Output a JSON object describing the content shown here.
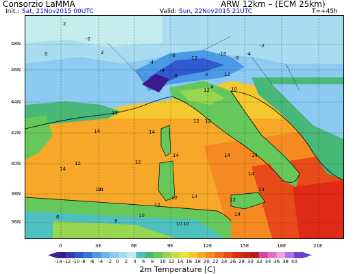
{
  "header": {
    "org": "Consorzio LaMMA",
    "model": "ARW 12km – (ECM 25km)",
    "init_label": "Init.:",
    "init_value": "Sat, 21Nov2015 00UTC",
    "valid_label": "Valid:",
    "valid_value": "Sun, 22Nov2015 21UTC",
    "lead": "T=+45h"
  },
  "map": {
    "lat_labels": [
      "48N",
      "46N",
      "44N",
      "42N",
      "40N",
      "38N",
      "36N"
    ],
    "lon_labels": [
      "0",
      "3E",
      "6E",
      "9E",
      "12E",
      "15E",
      "18E",
      "21E"
    ],
    "value_labels": [
      "2",
      "-2",
      "0",
      "2",
      "-4",
      "-8",
      "-12",
      "-10",
      "-8",
      "-4",
      "-2",
      "-4",
      "-8",
      "0",
      "4",
      "12",
      "10",
      "12",
      "12",
      "14",
      "14",
      "12",
      "12",
      "14",
      "14",
      "14",
      "14",
      "12",
      "12",
      "14",
      "14",
      "14",
      "12",
      "14",
      "14",
      "14",
      "12",
      "12",
      "10",
      "10",
      "8",
      "10",
      "6"
    ]
  },
  "colorbar": {
    "title": "2m Temperature [C]",
    "ticks": [
      "-14",
      "-12",
      "-10",
      "-8",
      "-6",
      "-4",
      "-2",
      "0",
      "2",
      "4",
      "6",
      "8",
      "10",
      "12",
      "14",
      "16",
      "18",
      "20",
      "22",
      "24",
      "26",
      "28",
      "30",
      "32",
      "34",
      "36",
      "38",
      "40"
    ],
    "colors": [
      "#3a1a8c",
      "#3a3ab0",
      "#2f5ad0",
      "#2f7ae0",
      "#4a9ae8",
      "#6ab4ee",
      "#8ccaf2",
      "#a8dcf0",
      "#c4ecec",
      "#4ec0c0",
      "#48b878",
      "#66c85a",
      "#96d650",
      "#bfe04a",
      "#f0e040",
      "#f6c830",
      "#f8a828",
      "#f68a22",
      "#f06a1e",
      "#e84a1a",
      "#e02a18",
      "#c82818",
      "#b41e1e",
      "#d048a0",
      "#e070c0",
      "#f0a0e0",
      "#b070e8",
      "#7040d0"
    ]
  }
}
